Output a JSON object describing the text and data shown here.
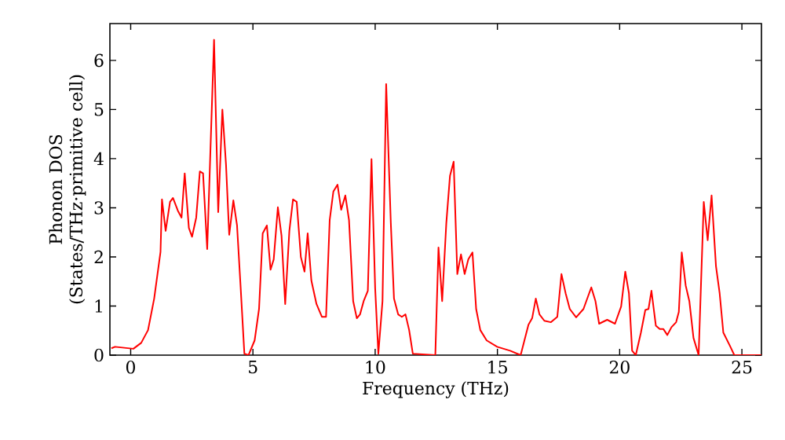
{
  "chart_data": {
    "type": "line",
    "xlabel": "Frequency (THz)",
    "ylabel": "Phonon DOS (States/THz·primitive cell)",
    "xlim": [
      -0.85,
      25.8
    ],
    "ylim": [
      0,
      6.75
    ],
    "xticks": [
      0,
      5,
      10,
      15,
      20,
      25
    ],
    "yticks": [
      0,
      1,
      2,
      3,
      4,
      5,
      6
    ],
    "marker": "none",
    "line_style": "solid",
    "series": [
      {
        "color": "#ff0000",
        "x": [
          -0.79,
          -0.64,
          0.11,
          0.43,
          0.71,
          0.96,
          1.22,
          1.28,
          1.43,
          1.61,
          1.73,
          1.93,
          2.08,
          2.21,
          2.38,
          2.51,
          2.68,
          2.83,
          2.96,
          3.13,
          3.41,
          3.58,
          3.75,
          3.9,
          4.03,
          4.2,
          4.35,
          4.5,
          4.65,
          4.82,
          5.07,
          5.25,
          5.4,
          5.57,
          5.72,
          5.85,
          6.02,
          6.17,
          6.32,
          6.49,
          6.64,
          6.79,
          6.96,
          7.11,
          7.24,
          7.39,
          7.6,
          7.82,
          7.99,
          8.14,
          8.29,
          8.46,
          8.61,
          8.78,
          8.93,
          9.1,
          9.25,
          9.38,
          9.53,
          9.7,
          9.85,
          10.0,
          10.13,
          10.3,
          10.45,
          10.64,
          10.77,
          10.94,
          11.09,
          11.24,
          11.39,
          11.54,
          12.46,
          12.59,
          12.74,
          12.91,
          13.06,
          13.21,
          13.36,
          13.51,
          13.66,
          13.81,
          13.98,
          14.13,
          14.3,
          14.56,
          14.99,
          15.52,
          15.95,
          16.27,
          16.42,
          16.57,
          16.72,
          16.92,
          17.19,
          17.45,
          17.62,
          17.79,
          17.96,
          18.22,
          18.52,
          18.84,
          19.01,
          19.16,
          19.49,
          19.81,
          20.06,
          20.23,
          20.38,
          20.51,
          20.66,
          20.87,
          21.05,
          21.18,
          21.3,
          21.48,
          21.64,
          21.79,
          21.95,
          22.12,
          22.31,
          22.42,
          22.54,
          22.7,
          22.85,
          23.02,
          23.23,
          23.44,
          23.6,
          23.76,
          23.94,
          24.09,
          24.24,
          24.51,
          24.69,
          25.8
        ],
        "values": [
          0.14,
          0.17,
          0.13,
          0.25,
          0.51,
          1.15,
          2.1,
          3.17,
          2.53,
          3.12,
          3.2,
          2.94,
          2.8,
          3.7,
          2.59,
          2.41,
          2.8,
          3.74,
          3.7,
          2.16,
          6.42,
          2.91,
          5.0,
          3.87,
          2.45,
          3.15,
          2.64,
          1.36,
          0.03,
          0,
          0.3,
          0.94,
          2.48,
          2.64,
          1.74,
          1.95,
          3.01,
          2.43,
          1.04,
          2.53,
          3.17,
          3.12,
          2.0,
          1.7,
          2.48,
          1.52,
          1.04,
          0.78,
          0.78,
          2.75,
          3.33,
          3.47,
          2.96,
          3.25,
          2.75,
          1.1,
          0.75,
          0.83,
          1.1,
          1.31,
          3.99,
          1.36,
          0.03,
          1.1,
          5.52,
          2.69,
          1.15,
          0.83,
          0.78,
          0.83,
          0.51,
          0.03,
          0,
          2.19,
          1.1,
          2.69,
          3.65,
          3.94,
          1.65,
          2.05,
          1.65,
          1.95,
          2.09,
          0.94,
          0.51,
          0.3,
          0.17,
          0.09,
          0,
          0.62,
          0.75,
          1.15,
          0.83,
          0.7,
          0.67,
          0.78,
          1.65,
          1.26,
          0.94,
          0.77,
          0.94,
          1.38,
          1.1,
          0.64,
          0.72,
          0.64,
          0.99,
          1.7,
          1.26,
          0.09,
          0,
          0.46,
          0.92,
          0.94,
          1.31,
          0.6,
          0.53,
          0.53,
          0.41,
          0.57,
          0.67,
          0.88,
          2.09,
          1.42,
          1.1,
          0.35,
          0,
          3.12,
          2.34,
          3.25,
          1.81,
          1.26,
          0.46,
          0.19,
          0,
          0
        ]
      }
    ]
  }
}
